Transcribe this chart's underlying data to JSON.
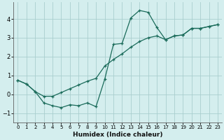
{
  "xlabel": "Humidex (Indice chaleur)",
  "background_color": "#d4eeee",
  "grid_color": "#aacece",
  "line_color": "#1a6b5a",
  "xlim": [
    -0.5,
    23.5
  ],
  "ylim": [
    -1.5,
    4.9
  ],
  "xticks": [
    0,
    1,
    2,
    3,
    4,
    5,
    6,
    7,
    8,
    9,
    10,
    11,
    12,
    13,
    14,
    15,
    16,
    17,
    18,
    19,
    20,
    21,
    22,
    23
  ],
  "yticks": [
    -1,
    0,
    1,
    2,
    3,
    4
  ],
  "series1_x": [
    0,
    1,
    2,
    3,
    4,
    5,
    6,
    7,
    8,
    9,
    10,
    11,
    12,
    13,
    14,
    15,
    16,
    17,
    18,
    19,
    20,
    21,
    22,
    23
  ],
  "series1_y": [
    0.75,
    0.55,
    0.15,
    -0.45,
    -0.6,
    -0.7,
    -0.55,
    -0.6,
    -0.45,
    -0.65,
    0.8,
    2.65,
    2.7,
    4.05,
    4.45,
    4.35,
    3.55,
    2.9,
    3.1,
    3.15,
    3.5,
    3.5,
    3.6,
    3.7
  ],
  "series2_x": [
    0,
    1,
    2,
    3,
    4,
    5,
    6,
    7,
    8,
    9,
    10,
    11,
    12,
    13,
    14,
    15,
    16,
    17,
    18,
    19,
    20,
    21,
    22,
    23
  ],
  "series2_y": [
    0.75,
    0.55,
    0.15,
    -0.1,
    -0.1,
    0.1,
    0.3,
    0.5,
    0.7,
    0.85,
    1.5,
    1.85,
    2.15,
    2.5,
    2.8,
    3.0,
    3.1,
    2.9,
    3.1,
    3.15,
    3.5,
    3.5,
    3.6,
    3.7
  ]
}
